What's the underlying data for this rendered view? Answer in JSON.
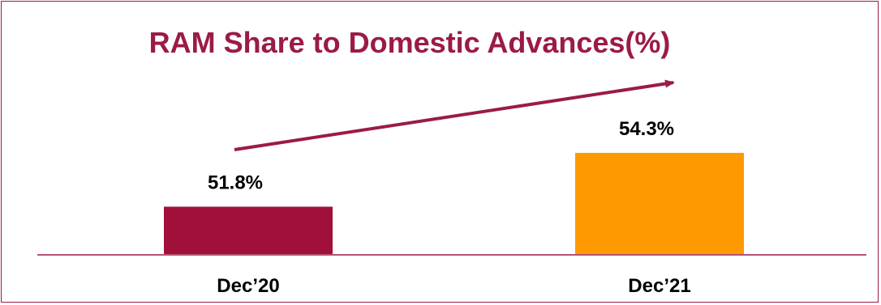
{
  "chart_data": {
    "type": "bar",
    "title": "RAM Share to Domestic Advances(%)",
    "categories": [
      "Dec’20",
      "Dec’21"
    ],
    "values": [
      51.8,
      54.3
    ],
    "value_labels": [
      "51.8%",
      "54.3%"
    ],
    "unit": "%",
    "ylim": [
      49.6,
      55.8
    ],
    "colors": [
      "#a0103b",
      "#ff9900"
    ],
    "accent_color": "#9b1b45",
    "grid": false,
    "legend": "none",
    "trend_arrow": "up"
  }
}
